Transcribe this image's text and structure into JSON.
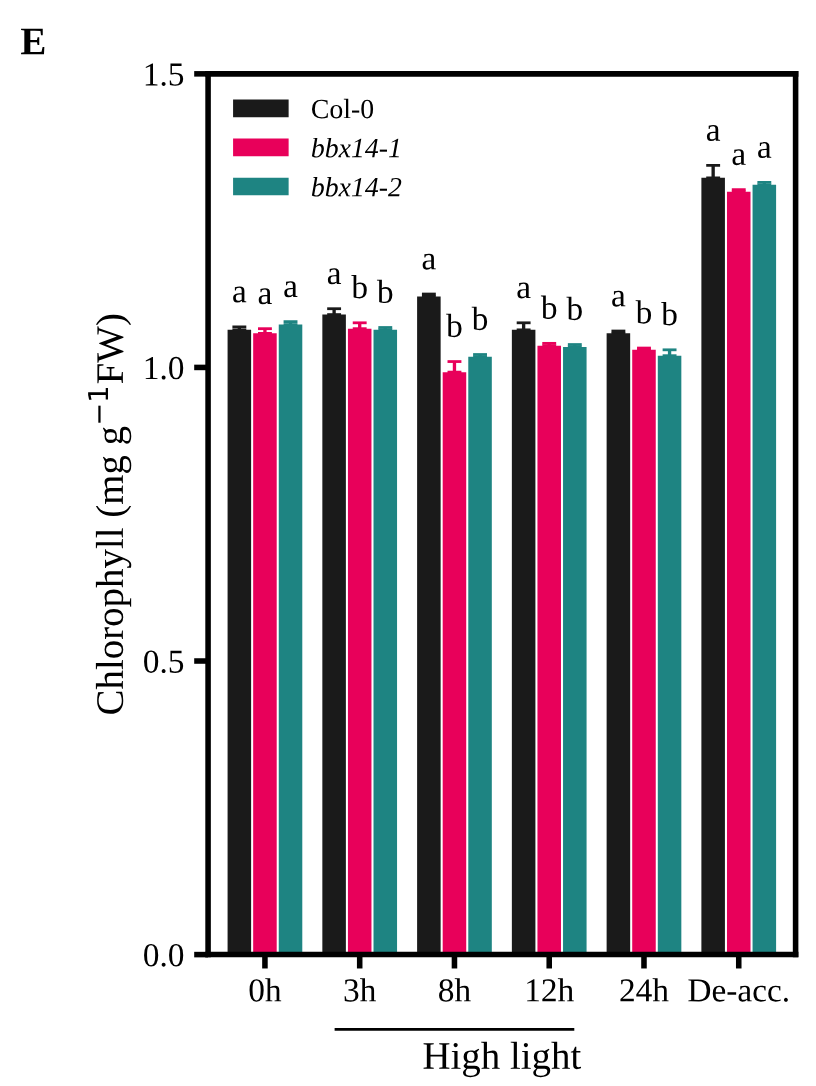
{
  "chart_data": {
    "type": "bar",
    "title": "E",
    "ylabel": "Chlorophyll (mg g$^{−1}$FW)",
    "xlabel": "High light",
    "categories": [
      "0h",
      "3h",
      "8h",
      "12h",
      "24h",
      "De-acc."
    ],
    "series": [
      {
        "name": "Col-0",
        "color": "#1a1a1a",
        "values": [
          1.064,
          1.09,
          1.121,
          1.064,
          1.058,
          1.323
        ],
        "errors": [
          0.005,
          0.01,
          0.004,
          0.012,
          0.004,
          0.021
        ]
      },
      {
        "name": "bbx14-1",
        "color": "#e8005a",
        "values": [
          1.058,
          1.066,
          0.992,
          1.037,
          1.03,
          1.299
        ],
        "errors": [
          0.008,
          0.01,
          0.018,
          0.004,
          0.003,
          0.004
        ]
      },
      {
        "name": "bbx14-2",
        "color": "#1e8482",
        "values": [
          1.073,
          1.064,
          1.018,
          1.035,
          1.02,
          1.311
        ],
        "errors": [
          0.005,
          0.004,
          0.004,
          0.004,
          0.01,
          0.004
        ]
      }
    ],
    "annotations": [
      "a",
      "a",
      "a",
      "a",
      "b",
      "b",
      "a",
      "b",
      "b",
      "a",
      "b",
      "b",
      "a",
      "b",
      "b",
      "a",
      "a",
      "a"
    ],
    "ylim": [
      0,
      1.5
    ],
    "yticks": [
      {
        "value": 0,
        "label": "0.0"
      },
      {
        "value": 0.5,
        "label": "0.5"
      },
      {
        "value": 1.0,
        "label": "1.0"
      },
      {
        "value": 1.5,
        "label": "1.5"
      }
    ],
    "legend": "top left",
    "grid": false
  }
}
